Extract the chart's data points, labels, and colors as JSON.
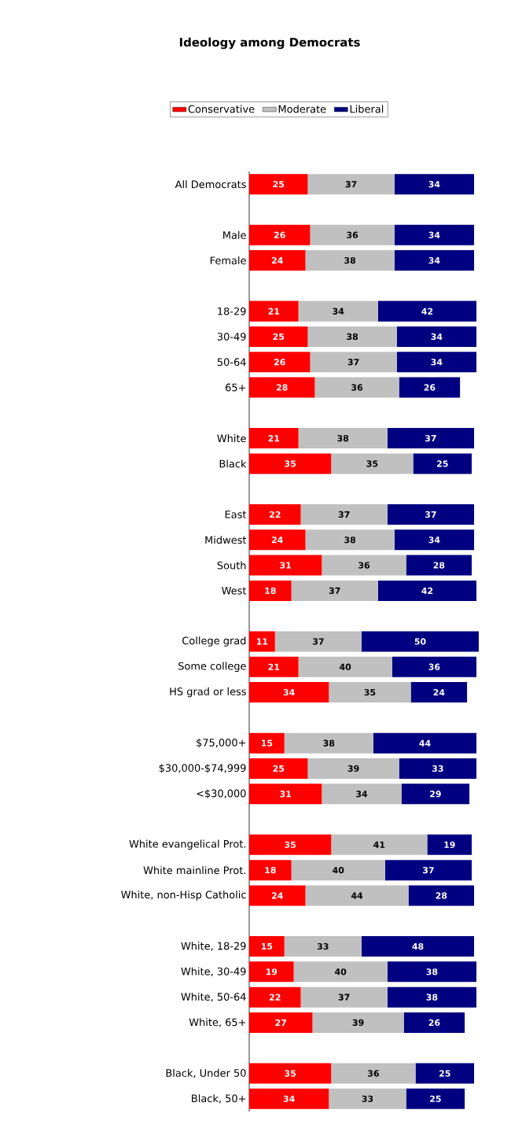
{
  "chart_data": {
    "type": "bar",
    "orientation": "horizontal",
    "stacked": true,
    "title": "Ideology among Democrats",
    "legend": "top",
    "data_labels": true,
    "categories": [
      "All Democrats",
      null,
      "Male",
      "Female",
      null,
      "18-29",
      "30-49",
      "50-64",
      "65+",
      null,
      "White",
      "Black",
      null,
      "East",
      "Midwest",
      "South",
      "West",
      null,
      "College grad",
      "Some college",
      "HS grad or less",
      null,
      "$75,000+",
      "$30,000-$74,999",
      "<$30,000",
      null,
      "White evangelical Prot.",
      "White mainline Prot.",
      "White, non-Hisp Catholic",
      null,
      "White, 18-29",
      "White, 30-49",
      "White, 50-64",
      "White, 65+",
      null,
      "Black, Under 50",
      "Black, 50+"
    ],
    "series": [
      {
        "name": "Conservative",
        "color": "#ff0000",
        "values": [
          25,
          null,
          26,
          24,
          null,
          21,
          25,
          26,
          28,
          null,
          21,
          35,
          null,
          22,
          24,
          31,
          18,
          null,
          11,
          21,
          34,
          null,
          15,
          25,
          31,
          null,
          35,
          18,
          24,
          null,
          15,
          19,
          22,
          27,
          null,
          35,
          34
        ]
      },
      {
        "name": "Moderate",
        "color": "#c0c0c0",
        "values": [
          37,
          null,
          36,
          38,
          null,
          34,
          38,
          37,
          36,
          null,
          38,
          35,
          null,
          37,
          38,
          36,
          37,
          null,
          37,
          40,
          35,
          null,
          38,
          39,
          34,
          null,
          41,
          40,
          44,
          null,
          33,
          40,
          37,
          39,
          null,
          36,
          33
        ]
      },
      {
        "name": "Liberal",
        "color": "#000080",
        "values": [
          34,
          null,
          34,
          34,
          null,
          42,
          34,
          34,
          26,
          null,
          37,
          25,
          null,
          37,
          34,
          28,
          42,
          null,
          50,
          36,
          24,
          null,
          44,
          33,
          29,
          null,
          19,
          37,
          28,
          null,
          48,
          38,
          38,
          26,
          null,
          25,
          25
        ]
      }
    ]
  }
}
